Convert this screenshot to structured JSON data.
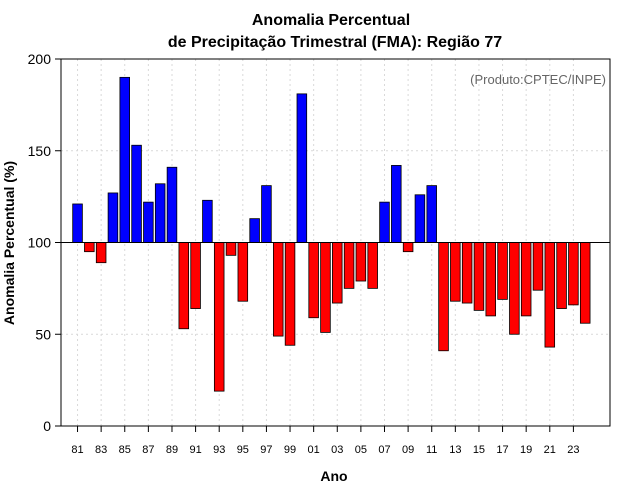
{
  "chart_data": {
    "type": "bar",
    "title": [
      "Anomalia Percentual",
      "de Precipitação Trimestral (FMA): Região 77"
    ],
    "xlabel": "Ano",
    "ylabel": "Anomalia Percentual (%)",
    "ylim": [
      0,
      200
    ],
    "yticks": [
      0,
      50,
      100,
      150,
      200
    ],
    "baseline": 100,
    "grid": true,
    "watermark": "(Produto:CPTEC/INPE)",
    "colors": {
      "above": "#0000ff",
      "below": "#ff0000",
      "edge": "#000000",
      "grid": "#d9d9d9"
    },
    "categories": [
      "81",
      "82",
      "83",
      "84",
      "85",
      "86",
      "87",
      "88",
      "89",
      "90",
      "91",
      "92",
      "93",
      "94",
      "95",
      "96",
      "97",
      "98",
      "99",
      "00",
      "01",
      "02",
      "03",
      "04",
      "05",
      "06",
      "07",
      "08",
      "09",
      "10",
      "11",
      "12",
      "13",
      "14",
      "15",
      "16",
      "17",
      "18",
      "19",
      "20",
      "21",
      "22",
      "23",
      "24"
    ],
    "xtick_labels": [
      "81",
      "83",
      "85",
      "87",
      "89",
      "91",
      "93",
      "95",
      "97",
      "99",
      "01",
      "03",
      "05",
      "07",
      "09",
      "11",
      "13",
      "15",
      "17",
      "19",
      "21",
      "23"
    ],
    "values": [
      121,
      95,
      89,
      127,
      190,
      153,
      122,
      132,
      141,
      53,
      64,
      123,
      19,
      93,
      68,
      113,
      131,
      49,
      44,
      181,
      59,
      51,
      67,
      75,
      79,
      75,
      122,
      142,
      95,
      126,
      131,
      41,
      68,
      67,
      63,
      60,
      69,
      50,
      60,
      74,
      43,
      64,
      66,
      56
    ]
  }
}
